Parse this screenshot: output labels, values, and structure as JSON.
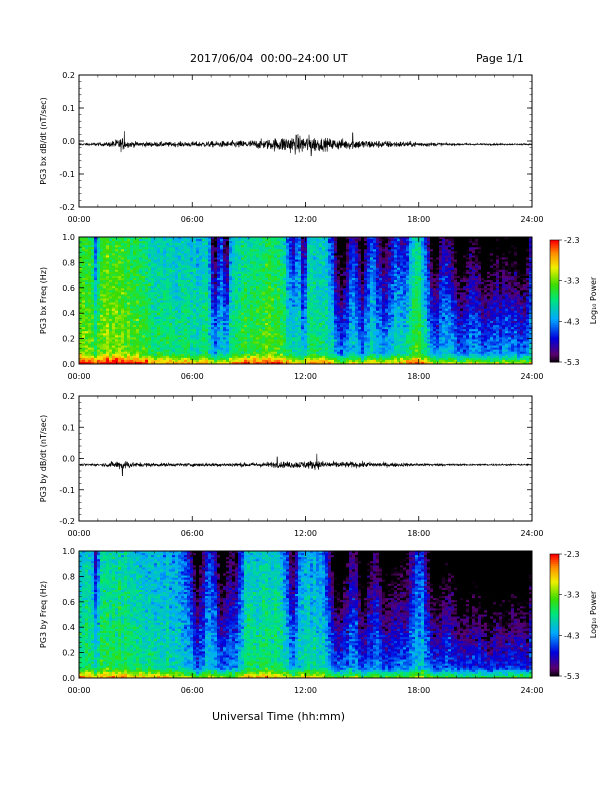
{
  "header": {
    "title": "2017/06/04  00:00–24:00 UT",
    "page": "Page 1/1"
  },
  "x_axis_label": "Universal Time (hh:mm)",
  "colorbar": {
    "label": "Log₁₀ Power",
    "ticks": [
      "-2.3",
      "-3.3",
      "-4.3",
      "-5.3"
    ]
  },
  "chart_data": [
    {
      "type": "line",
      "ylabel": "PG3 bx dB/dt (nT/sec)",
      "xlim": [
        0,
        24
      ],
      "ylim": [
        -0.2,
        0.2
      ],
      "xticks": [
        "00:00",
        "06:00",
        "12:00",
        "18:00",
        "24:00"
      ],
      "yticks": [
        "0.2",
        "0.1",
        "0.0",
        "-0.1",
        "-0.2"
      ],
      "baseline": -0.01,
      "noise_envelope": {
        "hours": [
          0,
          1.5,
          2.3,
          2.5,
          3,
          5,
          8,
          10,
          11,
          12,
          13,
          14.5,
          15.5,
          17.5,
          19,
          20,
          24
        ],
        "amplitude": [
          0.003,
          0.006,
          0.02,
          0.01,
          0.008,
          0.007,
          0.01,
          0.015,
          0.025,
          0.028,
          0.018,
          0.015,
          0.012,
          0.008,
          0.005,
          0.003,
          0.002
        ]
      },
      "spikes": [
        {
          "hour": 2.4,
          "value": 0.03
        },
        {
          "hour": 14.5,
          "value": 0.025
        },
        {
          "hour": 11.5,
          "value": 0.018
        },
        {
          "hour": 12.3,
          "value": -0.045
        }
      ]
    },
    {
      "type": "heatmap",
      "ylabel": "PG3 bx Freq (Hz)",
      "xlim": [
        0,
        24
      ],
      "ylim": [
        0,
        1.0
      ],
      "xticks": [
        "00:00",
        "06:00",
        "12:00",
        "18:00",
        "24:00"
      ],
      "yticks": [
        "1.0",
        "0.8",
        "0.6",
        "0.4",
        "0.2",
        "0.0"
      ],
      "zlim": [
        -5.3,
        -2.3
      ],
      "base_level": -3.7,
      "warm_regions": [
        {
          "hour": 1.5,
          "width": 2.2,
          "level": 0.55
        },
        {
          "hour": 10.0,
          "width": 1.6,
          "level": 0.35
        },
        {
          "hour": 17.6,
          "width": 1.0,
          "level": 0.3
        }
      ],
      "low_frequency_band": {
        "max_hz": 0.08,
        "level": 1.1
      },
      "quiet_stripes": [
        {
          "hour": 0.9,
          "width": 0.15,
          "depth": 0.9
        },
        {
          "hour": 7.2,
          "width": 0.25,
          "depth": 1.2
        },
        {
          "hour": 7.8,
          "width": 0.2,
          "depth": 1.3
        },
        {
          "hour": 11.3,
          "width": 0.3,
          "depth": 1.0
        },
        {
          "hour": 11.9,
          "width": 0.15,
          "depth": 1.1
        },
        {
          "hour": 13.9,
          "width": 0.5,
          "depth": 1.5
        },
        {
          "hour": 15.0,
          "width": 0.4,
          "depth": 1.3
        },
        {
          "hour": 16.2,
          "width": 0.5,
          "depth": 1.3
        },
        {
          "hour": 17.2,
          "width": 0.4,
          "depth": 1.0
        },
        {
          "hour": 18.8,
          "width": 0.5,
          "depth": 1.4
        },
        {
          "hour": 20.2,
          "width": 0.7,
          "depth": 1.6
        },
        {
          "hour": 21.5,
          "width": 0.6,
          "depth": 1.4
        },
        {
          "hour": 22.7,
          "width": 0.8,
          "depth": 1.4
        },
        {
          "hour": 23.6,
          "width": 0.4,
          "depth": 1.2
        }
      ]
    },
    {
      "type": "line",
      "ylabel": "PG3 by dB/dt (nT/sec)",
      "xlim": [
        0,
        24
      ],
      "ylim": [
        -0.2,
        0.2
      ],
      "xticks": [
        "00:00",
        "06:00",
        "12:00",
        "18:00",
        "24:00"
      ],
      "yticks": [
        "0.2",
        "0.1",
        "0.0",
        "-0.1",
        "-0.2"
      ],
      "baseline": -0.02,
      "noise_envelope": {
        "hours": [
          0,
          1.2,
          2.0,
          2.4,
          3,
          5,
          8,
          10,
          11,
          12,
          12.5,
          13.5,
          15,
          17,
          19,
          20,
          24
        ],
        "amplitude": [
          0.003,
          0.004,
          0.012,
          0.015,
          0.007,
          0.005,
          0.006,
          0.008,
          0.01,
          0.012,
          0.014,
          0.01,
          0.009,
          0.006,
          0.004,
          0.003,
          0.002
        ]
      },
      "spikes": [
        {
          "hour": 2.3,
          "value": -0.055
        },
        {
          "hour": 12.6,
          "value": 0.015
        },
        {
          "hour": 10.5,
          "value": 0.005
        }
      ]
    },
    {
      "type": "heatmap",
      "ylabel": "PG3 by Freq (Hz)",
      "xlim": [
        0,
        24
      ],
      "ylim": [
        0,
        1.0
      ],
      "xticks": [
        "00:00",
        "06:00",
        "12:00",
        "18:00",
        "24:00"
      ],
      "yticks": [
        "1.0",
        "0.8",
        "0.6",
        "0.4",
        "0.2",
        "0.0"
      ],
      "zlim": [
        -5.3,
        -2.3
      ],
      "base_level": -3.9,
      "warm_regions": [
        {
          "hour": 1.5,
          "width": 2.2,
          "level": 0.35
        },
        {
          "hour": 10.0,
          "width": 1.6,
          "level": 0.25
        }
      ],
      "low_frequency_band": {
        "max_hz": 0.08,
        "level": 1.0
      },
      "quiet_stripes": [
        {
          "hour": 0.9,
          "width": 0.15,
          "depth": 0.9
        },
        {
          "hour": 6.3,
          "width": 0.5,
          "depth": 1.2
        },
        {
          "hour": 7.6,
          "width": 0.4,
          "depth": 1.4
        },
        {
          "hour": 8.3,
          "width": 0.3,
          "depth": 1.0
        },
        {
          "hour": 11.3,
          "width": 0.3,
          "depth": 1.1
        },
        {
          "hour": 13.8,
          "width": 0.6,
          "depth": 1.5
        },
        {
          "hour": 15.1,
          "width": 0.5,
          "depth": 1.4
        },
        {
          "hour": 16.3,
          "width": 0.6,
          "depth": 1.4
        },
        {
          "hour": 17.3,
          "width": 0.5,
          "depth": 1.1
        },
        {
          "hour": 18.9,
          "width": 0.6,
          "depth": 1.5
        },
        {
          "hour": 20.3,
          "width": 0.8,
          "depth": 1.7
        },
        {
          "hour": 21.6,
          "width": 0.7,
          "depth": 1.5
        },
        {
          "hour": 22.8,
          "width": 0.8,
          "depth": 1.5
        },
        {
          "hour": 23.7,
          "width": 0.4,
          "depth": 1.3
        }
      ]
    }
  ]
}
